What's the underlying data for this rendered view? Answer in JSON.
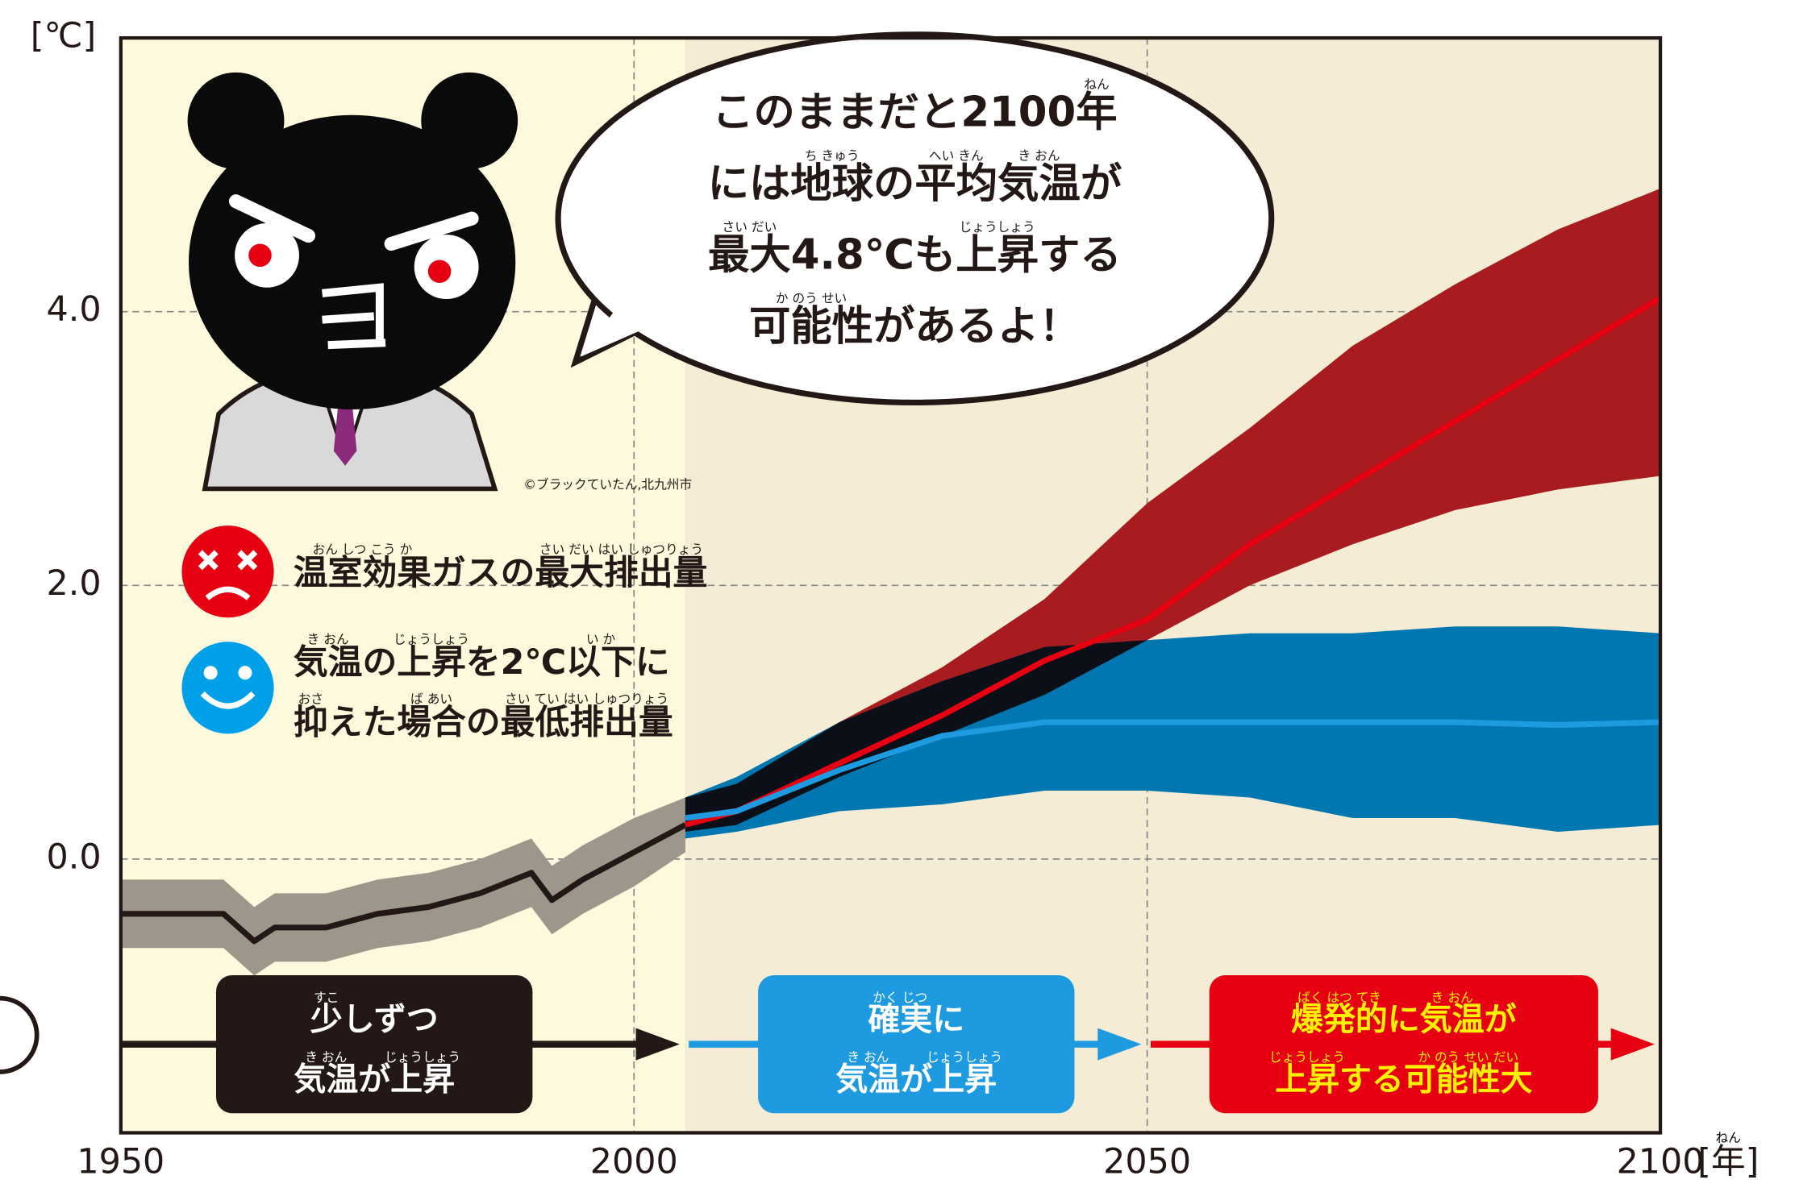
{
  "chart_data": {
    "type": "line",
    "xlim": [
      1950,
      2100
    ],
    "ylim": [
      -2,
      6
    ],
    "xticks": [
      1950,
      2000,
      2050,
      2100
    ],
    "yticks": [
      {
        "value": 0,
        "label": "0.0"
      },
      {
        "value": 2,
        "label": "2.0"
      },
      {
        "value": 4,
        "label": "4.0"
      }
    ],
    "grid": true,
    "y_unit": "[℃]",
    "x_unit": "[年]",
    "x_unit_ruby": "ねん",
    "shading": [
      {
        "from": 1950,
        "to": 2005,
        "color": "#fdf9dc"
      },
      {
        "from": 2005,
        "to": 2100,
        "color": "#f4ecd4"
      }
    ],
    "overlap_color": "#0b0f17",
    "series": [
      {
        "color": "#231815",
        "band_color": "#9d968a",
        "x": [
          1950,
          1955,
          1960,
          1963,
          1965,
          1970,
          1975,
          1980,
          1985,
          1990,
          1992,
          1995,
          2000,
          2005
        ],
        "values": [
          -0.4,
          -0.4,
          -0.4,
          -0.6,
          -0.5,
          -0.5,
          -0.4,
          -0.35,
          -0.25,
          -0.1,
          -0.3,
          -0.15,
          0.05,
          0.25
        ],
        "upper": [
          -0.15,
          -0.15,
          -0.15,
          -0.35,
          -0.25,
          -0.25,
          -0.15,
          -0.1,
          0,
          0.15,
          -0.05,
          0.1,
          0.3,
          0.45
        ],
        "lower": [
          -0.65,
          -0.65,
          -0.65,
          -0.85,
          -0.75,
          -0.75,
          -0.65,
          -0.6,
          -0.5,
          -0.35,
          -0.55,
          -0.4,
          -0.2,
          0.05
        ]
      },
      {
        "color": "#e60012",
        "band_color": "#a81c1f",
        "x": [
          2005,
          2010,
          2020,
          2030,
          2040,
          2050,
          2060,
          2070,
          2080,
          2090,
          2100
        ],
        "values": [
          0.25,
          0.35,
          0.7,
          1.05,
          1.45,
          1.75,
          2.3,
          2.75,
          3.2,
          3.65,
          4.1
        ],
        "upper": [
          0.45,
          0.55,
          1.0,
          1.4,
          1.9,
          2.6,
          3.15,
          3.75,
          4.2,
          4.6,
          4.9
        ],
        "lower": [
          0.2,
          0.25,
          0.6,
          0.9,
          1.2,
          1.6,
          2.0,
          2.3,
          2.55,
          2.7,
          2.8
        ]
      },
      {
        "color": "#1e9be0",
        "band_color": "#0077b0",
        "x": [
          2005,
          2010,
          2020,
          2030,
          2040,
          2050,
          2060,
          2070,
          2080,
          2090,
          2100
        ],
        "values": [
          0.3,
          0.35,
          0.65,
          0.9,
          1.0,
          1.0,
          1.0,
          1.0,
          1.0,
          0.98,
          1.0
        ],
        "upper": [
          0.45,
          0.6,
          1.0,
          1.3,
          1.55,
          1.6,
          1.65,
          1.65,
          1.7,
          1.7,
          1.65
        ],
        "lower": [
          0.15,
          0.2,
          0.35,
          0.4,
          0.5,
          0.5,
          0.45,
          0.3,
          0.3,
          0.2,
          0.25
        ]
      }
    ],
    "legend": [
      {
        "color": "#e60012",
        "lines": [
          {
            "text": "温室効果ガスの最大排出量",
            "ruby": [
              {
                "base": "温室効果",
                "reading": "おん しつ こう か"
              },
              {
                "base": "最大排出量",
                "reading": "さい だい はい しゅつりょう"
              }
            ]
          }
        ]
      },
      {
        "color": "#1e9be0",
        "lines": [
          {
            "text": "気温の上昇を2℃以下に",
            "ruby": [
              {
                "base": "気温",
                "reading": "き おん"
              },
              {
                "base": "上昇",
                "reading": "じょうしょう"
              },
              {
                "base": "以下",
                "reading": "い か"
              }
            ]
          },
          {
            "text": "抑えた場合の最低排出量",
            "ruby": [
              {
                "base": "抑",
                "reading": "おさ"
              },
              {
                "base": "場合",
                "reading": "ば あい"
              },
              {
                "base": "最低排出量",
                "reading": "さい てい はい しゅつりょう"
              }
            ]
          }
        ]
      }
    ],
    "speech": [
      {
        "text": "このままだと2100年",
        "ruby": [
          {
            "base": "年",
            "reading": "ねん"
          }
        ]
      },
      {
        "text": "には地球の平均気温が",
        "ruby": [
          {
            "base": "地球",
            "reading": "ち きゅう"
          },
          {
            "base": "平均",
            "reading": "へい きん"
          },
          {
            "base": "気温",
            "reading": "き おん"
          }
        ]
      },
      {
        "text": "最大4.8℃も上昇する",
        "ruby": [
          {
            "base": "最大",
            "reading": "さい だい"
          },
          {
            "base": "上昇",
            "reading": "じょうしょう"
          }
        ]
      },
      {
        "text": "可能性があるよ！",
        "ruby": [
          {
            "base": "可能性",
            "reading": "か のう せい"
          }
        ]
      }
    ],
    "phases": [
      {
        "from": 1950,
        "to": 2005,
        "color": "#231815",
        "box_color": "#231815",
        "text_color": "#ffffff",
        "lines": [
          {
            "text": "少しずつ",
            "ruby": [
              {
                "base": "少",
                "reading": "すこ"
              }
            ]
          },
          {
            "text": "気温が上昇",
            "ruby": [
              {
                "base": "気温",
                "reading": "き おん"
              },
              {
                "base": "上昇",
                "reading": "じょうしょう"
              }
            ]
          }
        ]
      },
      {
        "from": 2005,
        "to": 2050,
        "color": "#1e9be0",
        "box_color": "#1e9be0",
        "text_color": "#ffffff",
        "lines": [
          {
            "text": "確実に",
            "ruby": [
              {
                "base": "確実",
                "reading": "かく じつ"
              }
            ]
          },
          {
            "text": "気温が上昇",
            "ruby": [
              {
                "base": "気温",
                "reading": "き おん"
              },
              {
                "base": "上昇",
                "reading": "じょうしょう"
              }
            ]
          }
        ]
      },
      {
        "from": 2050,
        "to": 2100,
        "color": "#e60012",
        "box_color": "#e60012",
        "text_color": "#fff100",
        "lines": [
          {
            "text": "爆発的に気温が",
            "ruby": [
              {
                "base": "爆発的",
                "reading": "ばく はつ てき"
              },
              {
                "base": "気温",
                "reading": "き おん"
              }
            ]
          },
          {
            "text": "上昇する可能性大",
            "ruby": [
              {
                "base": "上昇",
                "reading": "じょうしょう"
              },
              {
                "base": "可能性大",
                "reading": "か のう せい だい"
              }
            ]
          }
        ]
      }
    ],
    "credit": "©ブラックていたん,北九州市"
  }
}
